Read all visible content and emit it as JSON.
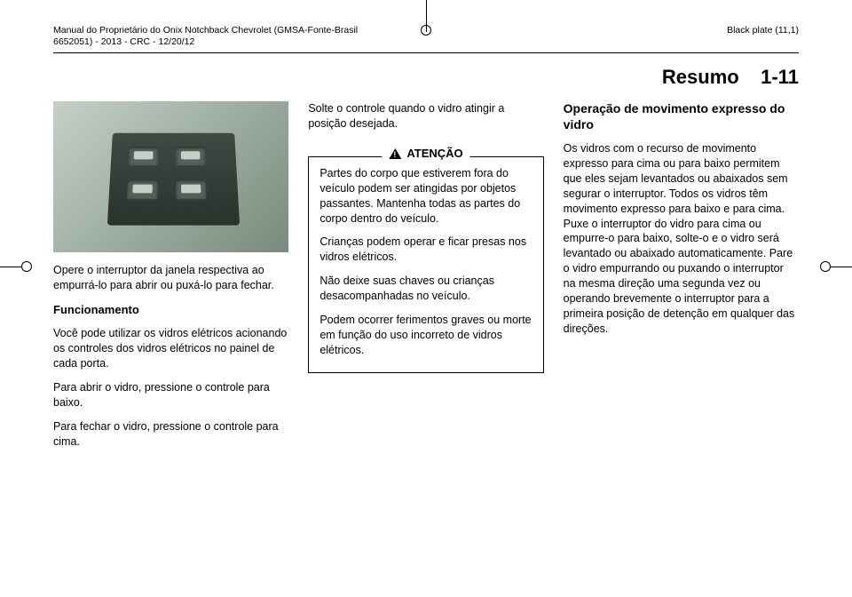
{
  "header": {
    "left_line1": "Manual do Proprietário do Onix Notchback Chevrolet (GMSA-Fonte-Brasil",
    "left_line2": "6652051) - 2013 - CRC - 12/20/12",
    "right": "Black plate (11,1)"
  },
  "section": {
    "label": "Resumo",
    "page": "1-11"
  },
  "col1": {
    "p1": "Opere o interruptor da janela respectiva ao empurrá-lo para abrir ou puxá-lo para fechar.",
    "h1": "Funcionamento",
    "p2": "Você pode utilizar os vidros elétricos acionando os controles dos vidros elétricos no painel de cada porta.",
    "p3": "Para abrir o vidro, pressione o controle para baixo.",
    "p4": "Para fechar o vidro, pressione o controle para cima."
  },
  "col2": {
    "intro": "Solte o controle quando o vidro atingir a posição desejada.",
    "warn_label": "ATENÇÃO",
    "w1": "Partes do corpo que estiverem fora do veículo podem ser atingidas por objetos passantes. Mantenha todas as partes do corpo dentro do veículo.",
    "w2": "Crianças podem operar e ficar presas nos vidros elétricos.",
    "w3": "Não deixe suas chaves ou crianças desacompanhadas no veículo.",
    "w4": "Podem ocorrer ferimentos graves ou morte em função do uso incorreto de vidros elétricos."
  },
  "col3": {
    "h1": "Operação de movimento expresso do vidro",
    "p1": "Os vidros com o recurso de movimento expresso para cima ou para baixo permitem que eles sejam levantados ou abaixados sem segurar o interruptor. Todos os vidros têm movimento expresso para baixo e para cima. Puxe o interruptor do vidro para cima ou empurre-o para baixo, solte-o e o vidro será levantado ou abaixado automaticamente. Pare o vidro empurrando ou puxando o interruptor na mesma direção uma segunda vez ou operando brevemente o interruptor para a primeira posição de detenção em qualquer das direções."
  }
}
